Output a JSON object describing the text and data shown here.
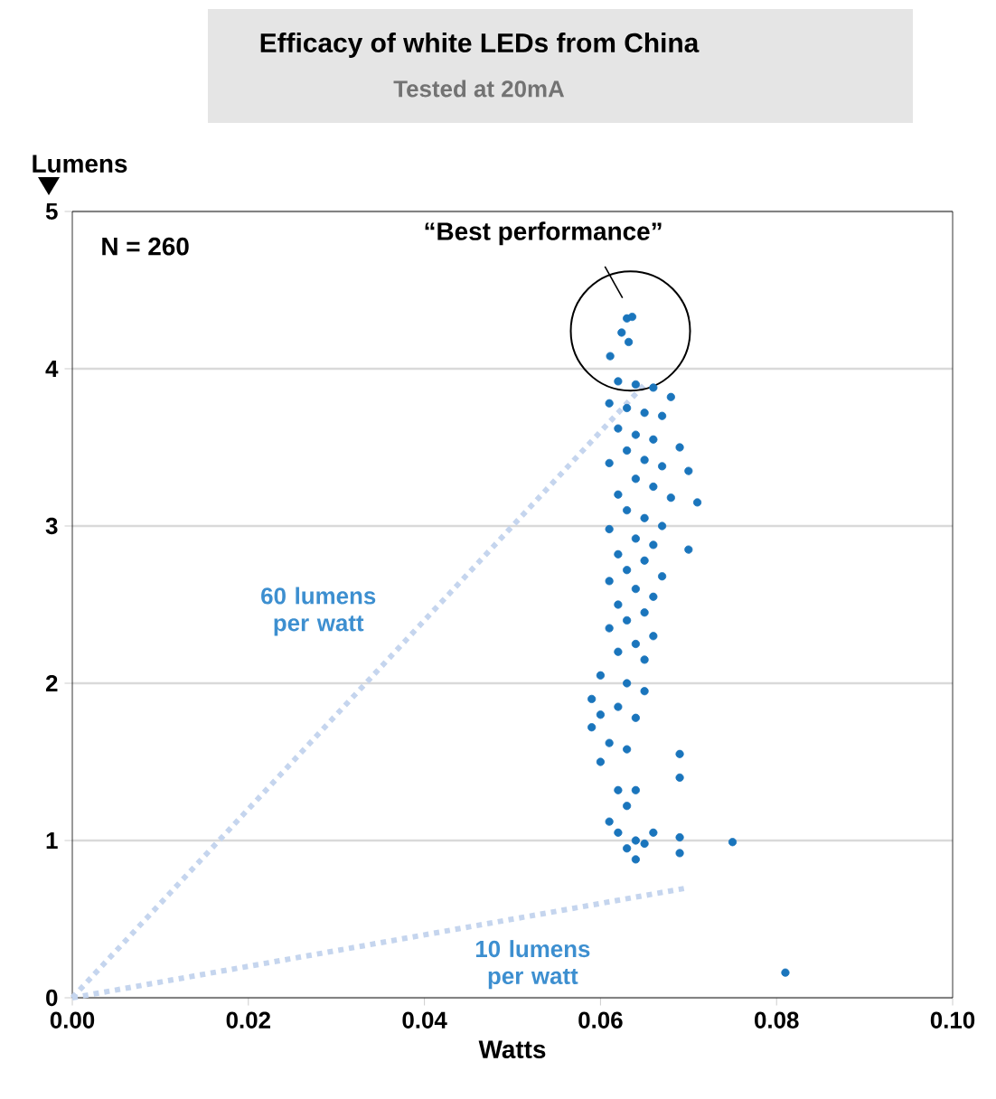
{
  "chart_data": {
    "type": "scatter",
    "title": "Efficacy of white LEDs from China",
    "subtitle": "Tested at 20mA",
    "xlabel": "Watts",
    "ylabel": "Lumens",
    "annotations": [
      "N = 260",
      "“Best performance”"
    ],
    "xlim": [
      0,
      0.1
    ],
    "ylim": [
      0,
      5
    ],
    "xticks": [
      {
        "value": 0,
        "label": "0.00"
      },
      {
        "value": 0.02,
        "label": "0.02"
      },
      {
        "value": 0.04,
        "label": "0.04"
      },
      {
        "value": 0.06,
        "label": "0.06"
      },
      {
        "value": 0.08,
        "label": "0.08"
      },
      {
        "value": 0.1,
        "label": "0.10"
      }
    ],
    "yticks": [
      0,
      1,
      2,
      3,
      4,
      5
    ],
    "grid": "y",
    "series": [
      {
        "color": "#1a75bc",
        "marker": "circle",
        "x": [
          0.063,
          0.0636,
          0.0624,
          0.0632,
          0.0611,
          0.062,
          0.064,
          0.066,
          0.068,
          0.061,
          0.063,
          0.065,
          0.067,
          0.062,
          0.064,
          0.066,
          0.069,
          0.063,
          0.065,
          0.061,
          0.067,
          0.07,
          0.064,
          0.066,
          0.062,
          0.068,
          0.071,
          0.063,
          0.065,
          0.067,
          0.061,
          0.064,
          0.066,
          0.07,
          0.062,
          0.065,
          0.063,
          0.067,
          0.061,
          0.064,
          0.066,
          0.062,
          0.065,
          0.063,
          0.061,
          0.066,
          0.064,
          0.062,
          0.065,
          0.06,
          0.063,
          0.065,
          0.059,
          0.062,
          0.06,
          0.064,
          0.059,
          0.061,
          0.063,
          0.06,
          0.069,
          0.069,
          0.062,
          0.064,
          0.063,
          0.061,
          0.062,
          0.064,
          0.065,
          0.063,
          0.066,
          0.064,
          0.069,
          0.069,
          0.075,
          0.081
        ],
        "values": [
          4.32,
          4.33,
          4.23,
          4.17,
          4.08,
          3.92,
          3.9,
          3.88,
          3.82,
          3.78,
          3.75,
          3.72,
          3.7,
          3.62,
          3.58,
          3.55,
          3.5,
          3.48,
          3.42,
          3.4,
          3.38,
          3.35,
          3.3,
          3.25,
          3.2,
          3.18,
          3.15,
          3.1,
          3.05,
          3.0,
          2.98,
          2.92,
          2.88,
          2.85,
          2.82,
          2.78,
          2.72,
          2.68,
          2.65,
          2.6,
          2.55,
          2.5,
          2.45,
          2.4,
          2.35,
          2.3,
          2.25,
          2.2,
          2.15,
          2.05,
          2.0,
          1.95,
          1.9,
          1.85,
          1.8,
          1.78,
          1.72,
          1.62,
          1.58,
          1.5,
          1.55,
          1.4,
          1.32,
          1.32,
          1.22,
          1.12,
          1.05,
          1.0,
          0.98,
          0.95,
          1.05,
          0.88,
          1.02,
          0.92,
          0.99,
          0.16
        ]
      },
      {
        "type": "line",
        "name": "60 lumens per watt",
        "color": "#c5d5ee",
        "marker": "none",
        "line_style": "dashed",
        "x": [
          0,
          0.065
        ],
        "values": [
          0,
          3.9
        ]
      },
      {
        "type": "line",
        "name": "10 lumens per watt",
        "color": "#c5d5ee",
        "marker": "none",
        "line_style": "dashed",
        "x": [
          0,
          0.07
        ],
        "values": [
          0,
          0.7
        ]
      }
    ]
  }
}
